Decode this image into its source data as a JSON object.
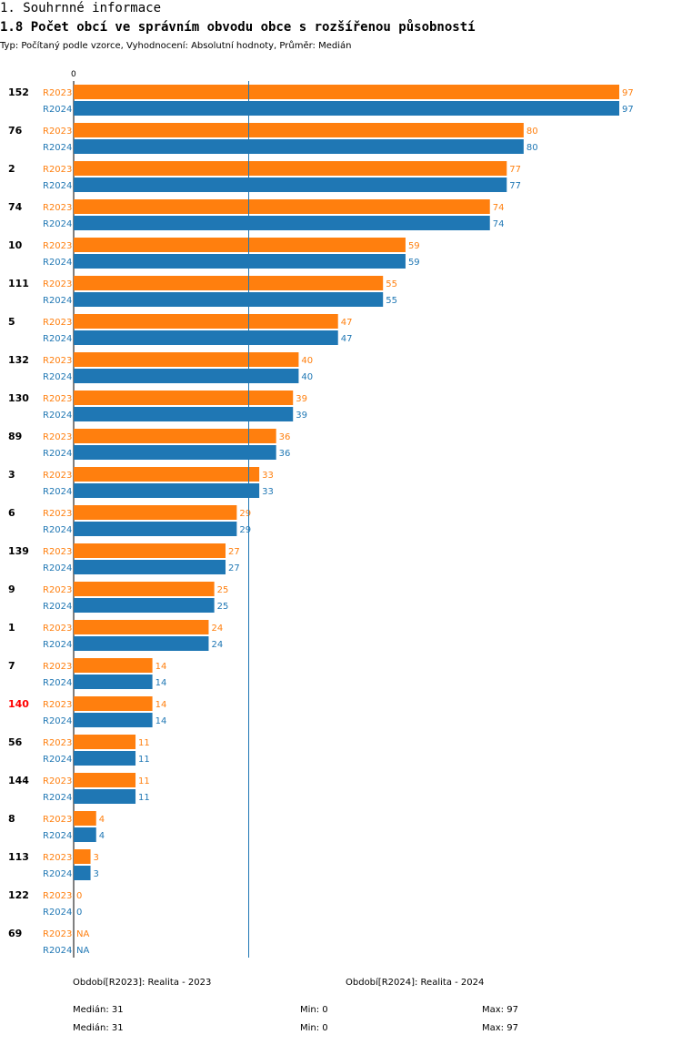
{
  "header": {
    "section": "1. Souhrnné informace",
    "title": "1.8 Počet obcí ve správním obvodu obce s rozšířenou působností",
    "subtitle": "Typ: Počítaný podle vzorce, Vyhodnocení: Absolutní hodnoty, Průměr: Medián"
  },
  "colors": {
    "r2023": "#ff7f0e",
    "r2024": "#1f77b4",
    "highlight": "#ff0000",
    "axis": "#000000"
  },
  "chart_data": {
    "type": "bar",
    "orientation": "horizontal",
    "title": "1.8 Počet obcí ve správním obvodu obce s rozšířenou působností",
    "axis_zero_label": "0",
    "xlim": [
      0,
      97
    ],
    "median_line": 31,
    "categories": [
      "152",
      "76",
      "2",
      "74",
      "10",
      "111",
      "5",
      "132",
      "130",
      "89",
      "3",
      "6",
      "139",
      "9",
      "1",
      "7",
      "140",
      "56",
      "144",
      "8",
      "113",
      "122",
      "69"
    ],
    "highlight_category": "140",
    "series": [
      {
        "name": "R2023",
        "values": [
          97,
          80,
          77,
          74,
          59,
          55,
          47,
          40,
          39,
          36,
          33,
          29,
          27,
          25,
          24,
          14,
          14,
          11,
          11,
          4,
          3,
          0,
          null
        ]
      },
      {
        "name": "R2024",
        "values": [
          97,
          80,
          77,
          74,
          59,
          55,
          47,
          40,
          39,
          36,
          33,
          29,
          27,
          25,
          24,
          14,
          14,
          11,
          11,
          4,
          3,
          0,
          null
        ]
      }
    ],
    "na_label": "NA"
  },
  "legend": {
    "r2023": "Období[R2023]: Realita - 2023",
    "r2024": "Období[R2024]: Realita - 2024"
  },
  "stats": {
    "r2023": {
      "median": "Medián: 31",
      "min": "Min: 0",
      "max": "Max: 97"
    },
    "r2024": {
      "median": "Medián: 31",
      "min": "Min: 0",
      "max": "Max: 97"
    }
  }
}
